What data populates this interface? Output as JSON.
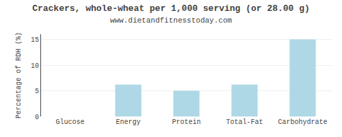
{
  "chart_data": {
    "type": "bar",
    "title": "Crackers, whole-wheat per 1,000 serving (or 28.00 g)",
    "subtitle": "www.dietandfitnesstoday.com",
    "categories": [
      "Glucose",
      "Energy",
      "Protein",
      "Total-Fat",
      "Carbohydrate"
    ],
    "values": [
      0,
      6.2,
      5.0,
      6.2,
      15.0
    ],
    "color": "#aed8e6",
    "ylabel": "Percentage of RDH (%)",
    "ylim": [
      0,
      16
    ],
    "yticks": [
      0,
      5,
      10,
      15
    ],
    "grid": true
  }
}
